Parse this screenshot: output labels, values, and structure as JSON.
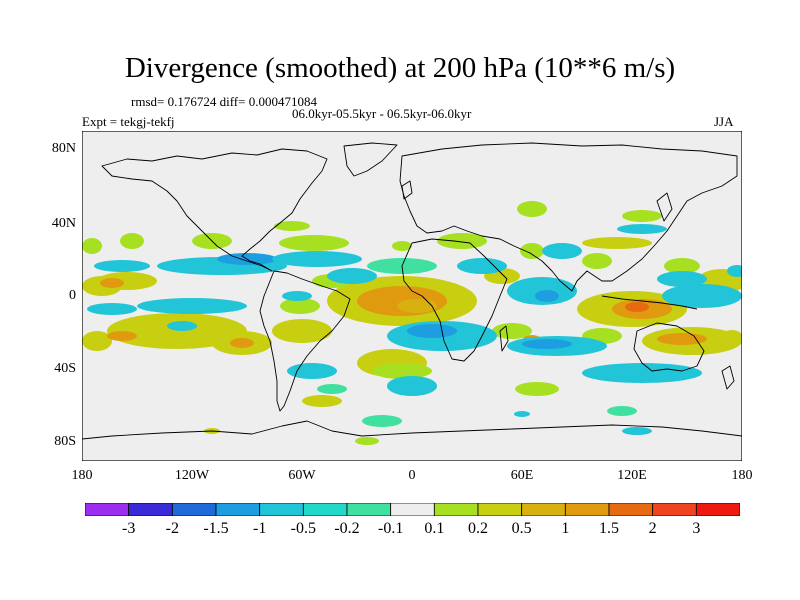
{
  "title": "Divergence (smoothed) at 200 hPa (10**6 m/s)",
  "stats": "rmsd= 0.176724  diff= 0.000471084",
  "subtitle": "06.0kyr-05.5kyr - 06.5kyr-06.0kyr",
  "expt": "Expt = tekgj-tekfj",
  "season": "JJA",
  "map": {
    "lat_labels": [
      "80N",
      "40N",
      "0",
      "40S",
      "80S"
    ],
    "lon_labels": [
      "180",
      "120W",
      "60W",
      "0",
      "60E",
      "120E",
      "180"
    ],
    "background_color": "#eeeeee"
  },
  "colorbar": {
    "colors": [
      "#9c2ef0",
      "#3a2ad8",
      "#1f6ad8",
      "#1d9ee0",
      "#22c4d8",
      "#22d8c8",
      "#3fe0a0",
      "#eeeeee",
      "#a6e020",
      "#c8cf10",
      "#d8b010",
      "#e09a10",
      "#e86a10",
      "#ee4420",
      "#ee1a10"
    ],
    "labels": [
      "-3",
      "-2",
      "-1.5",
      "-1",
      "-0.5",
      "-0.2",
      "-0.1",
      "0.1",
      "0.2",
      "0.5",
      "1",
      "1.5",
      "2",
      "3"
    ]
  }
}
